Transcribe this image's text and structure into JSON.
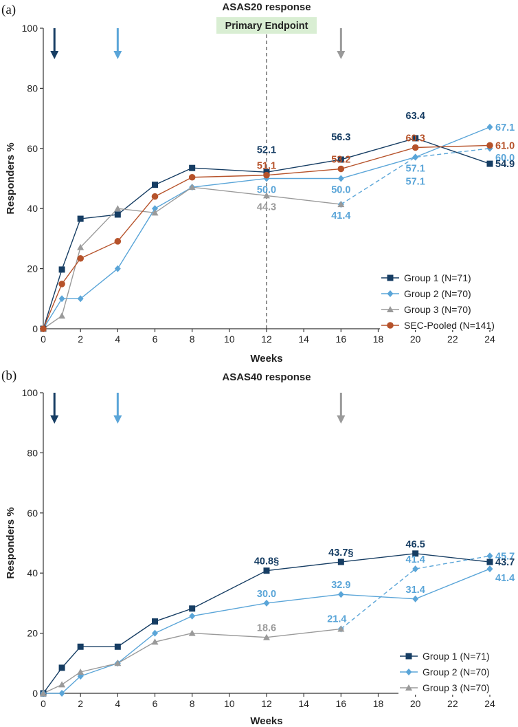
{
  "colors": {
    "group1": "#163d63",
    "group2": "#5aa5d8",
    "group3": "#9a9a9a",
    "pooled": "#b6522a",
    "endpoint_bg": "#d9eed3",
    "refline": "#777777"
  },
  "chart_data": [
    {
      "id": "a",
      "panel_label": "(a)",
      "type": "line",
      "title": "ASAS20 response",
      "xlabel": "Weeks",
      "ylabel": "Responders %",
      "xlim": [
        0,
        24
      ],
      "ylim": [
        0,
        100
      ],
      "xticks": [
        0,
        2,
        4,
        6,
        8,
        10,
        12,
        14,
        16,
        18,
        20,
        22,
        24
      ],
      "yticks": [
        0,
        20,
        40,
        60,
        80,
        100
      ],
      "reference_line": {
        "x": 12,
        "label": "Primary Endpoint"
      },
      "arrows": [
        {
          "x": 0.6,
          "series": "group1"
        },
        {
          "x": 4,
          "series": "group2"
        },
        {
          "x": 16,
          "series": "group3"
        }
      ],
      "legend_position": "bottom-right",
      "series": [
        {
          "key": "group1",
          "name": "Group 1 (N=71)",
          "marker": "square",
          "x": [
            0,
            1,
            2,
            4,
            6,
            8,
            12,
            16,
            20,
            24
          ],
          "values": [
            0,
            19.7,
            36.6,
            38.0,
            47.9,
            53.5,
            52.1,
            56.3,
            63.4,
            54.9
          ]
        },
        {
          "key": "group2",
          "name": "Group 2 (N=70)",
          "marker": "diamond",
          "x": [
            0,
            1,
            2,
            4,
            6,
            8,
            12,
            16,
            20,
            24
          ],
          "values": [
            0,
            10.0,
            10.0,
            20.0,
            40.0,
            47.1,
            50.0,
            50.0,
            57.1,
            67.1
          ]
        },
        {
          "key": "group2b",
          "name": "",
          "marker": "diamond",
          "dashed": true,
          "legend": false,
          "x": [
            16,
            20,
            24
          ],
          "values": [
            41.4,
            57.1,
            60.0
          ]
        },
        {
          "key": "group3",
          "name": "Group 3 (N=70)",
          "marker": "triangle",
          "x": [
            0,
            1,
            2,
            4,
            6,
            8,
            12,
            16
          ],
          "values": [
            0,
            4.3,
            27.1,
            40.0,
            38.6,
            47.1,
            44.3,
            41.4
          ]
        },
        {
          "key": "pooled",
          "name": "SEC-Pooled (N=141)",
          "marker": "circle",
          "x": [
            0,
            1,
            2,
            4,
            6,
            8,
            12,
            16,
            20,
            24
          ],
          "values": [
            0,
            14.9,
            23.4,
            29.1,
            44.0,
            50.4,
            51.1,
            53.2,
            60.3,
            61.0
          ]
        }
      ],
      "annotations": [
        {
          "text": "52.1",
          "x": 12,
          "y": 52.1,
          "series": "group1",
          "pos": "above2"
        },
        {
          "text": "51.1",
          "x": 12,
          "y": 51.1,
          "series": "pooled",
          "pos": "above1"
        },
        {
          "text": "50.0",
          "x": 12,
          "y": 50.0,
          "series": "group2",
          "pos": "below1"
        },
        {
          "text": "44.3",
          "x": 12,
          "y": 44.3,
          "series": "group3",
          "pos": "below1"
        },
        {
          "text": "56.3",
          "x": 16,
          "y": 56.3,
          "series": "group1",
          "pos": "above2"
        },
        {
          "text": "53.2",
          "x": 16,
          "y": 53.2,
          "series": "pooled",
          "pos": "above1"
        },
        {
          "text": "50.0",
          "x": 16,
          "y": 50.0,
          "series": "group2",
          "pos": "below1"
        },
        {
          "text": "41.4",
          "x": 16,
          "y": 41.4,
          "series": "group2",
          "pos": "below1"
        },
        {
          "text": "63.4",
          "x": 20,
          "y": 63.4,
          "series": "group1",
          "pos": "above2"
        },
        {
          "text": "60.3",
          "x": 20,
          "y": 60.3,
          "series": "pooled",
          "pos": "above1"
        },
        {
          "text": "57.1",
          "x": 20,
          "y": 57.1,
          "series": "group2",
          "pos": "below1"
        },
        {
          "text": "57.1",
          "x": 20,
          "y": 57.1,
          "series": "group2",
          "pos": "below2"
        },
        {
          "text": "67.1",
          "x": 24,
          "y": 67.1,
          "series": "group2",
          "pos": "right"
        },
        {
          "text": "61.0",
          "x": 24,
          "y": 61.0,
          "series": "pooled",
          "pos": "right"
        },
        {
          "text": "60.0",
          "x": 24,
          "y": 60.0,
          "series": "group2",
          "pos": "rightbelow"
        },
        {
          "text": "54.9",
          "x": 24,
          "y": 54.9,
          "series": "group1",
          "pos": "right"
        }
      ]
    },
    {
      "id": "b",
      "panel_label": "(b)",
      "type": "line",
      "title": "ASAS40 response",
      "xlabel": "Weeks",
      "ylabel": "Responders %",
      "xlim": [
        0,
        24
      ],
      "ylim": [
        0,
        100
      ],
      "xticks": [
        0,
        2,
        4,
        6,
        8,
        10,
        12,
        14,
        16,
        18,
        20,
        22,
        24
      ],
      "yticks": [
        0,
        20,
        40,
        60,
        80,
        100
      ],
      "arrows": [
        {
          "x": 0.6,
          "series": "group1"
        },
        {
          "x": 4,
          "series": "group2"
        },
        {
          "x": 16,
          "series": "group3"
        }
      ],
      "legend_position": "bottom-right",
      "series": [
        {
          "key": "group1",
          "name": "Group 1 (N=71)",
          "marker": "square",
          "x": [
            0,
            1,
            2,
            4,
            6,
            8,
            12,
            16,
            20,
            24
          ],
          "values": [
            0,
            8.5,
            15.5,
            15.5,
            23.9,
            28.2,
            40.8,
            43.7,
            46.5,
            43.7
          ]
        },
        {
          "key": "group2",
          "name": "Group 2 (N=70)",
          "marker": "diamond",
          "x": [
            0,
            1,
            2,
            4,
            6,
            8,
            12,
            16,
            20,
            24
          ],
          "values": [
            0,
            0,
            5.7,
            10.0,
            20.0,
            25.7,
            30.0,
            32.9,
            31.4,
            41.4
          ]
        },
        {
          "key": "group2b",
          "name": "",
          "marker": "diamond",
          "dashed": true,
          "legend": false,
          "x": [
            16,
            20,
            24
          ],
          "values": [
            21.4,
            41.4,
            45.7
          ]
        },
        {
          "key": "group3",
          "name": "Group 3 (N=70)",
          "marker": "triangle",
          "x": [
            0,
            1,
            2,
            4,
            6,
            8,
            12,
            16
          ],
          "values": [
            0,
            2.9,
            7.1,
            10.0,
            17.1,
            20.0,
            18.6,
            21.4
          ]
        }
      ],
      "annotations": [
        {
          "text": "40.8§",
          "x": 12,
          "y": 40.8,
          "series": "group1",
          "pos": "above1"
        },
        {
          "text": "30.0",
          "x": 12,
          "y": 30.0,
          "series": "group2",
          "pos": "above1"
        },
        {
          "text": "18.6",
          "x": 12,
          "y": 18.6,
          "series": "group3",
          "pos": "above1"
        },
        {
          "text": "43.7§",
          "x": 16,
          "y": 43.7,
          "series": "group1",
          "pos": "above1"
        },
        {
          "text": "32.9",
          "x": 16,
          "y": 32.9,
          "series": "group2",
          "pos": "above1"
        },
        {
          "text": "21.4",
          "x": 16,
          "y": 21.4,
          "series": "group2",
          "pos": "aboveleft"
        },
        {
          "text": "46.5",
          "x": 20,
          "y": 46.5,
          "series": "group1",
          "pos": "above1"
        },
        {
          "text": "41.4",
          "x": 20,
          "y": 41.4,
          "series": "group2",
          "pos": "above1"
        },
        {
          "text": "31.4",
          "x": 20,
          "y": 31.4,
          "series": "group2",
          "pos": "above1"
        },
        {
          "text": "45.7",
          "x": 24,
          "y": 45.7,
          "series": "group2",
          "pos": "right"
        },
        {
          "text": "43.7",
          "x": 24,
          "y": 43.7,
          "series": "group1",
          "pos": "right"
        },
        {
          "text": "41.4",
          "x": 24,
          "y": 41.4,
          "series": "group2",
          "pos": "rightbelow"
        }
      ]
    }
  ]
}
